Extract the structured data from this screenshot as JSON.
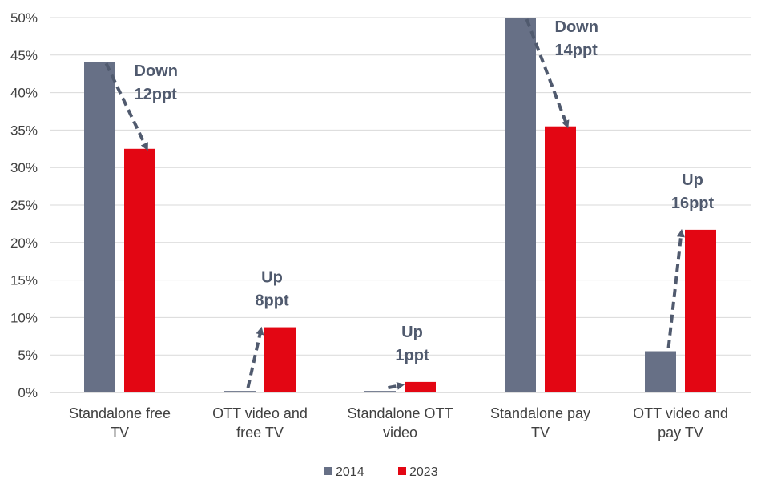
{
  "chart_data": {
    "type": "bar",
    "categories": [
      [
        "Standalone free",
        "TV"
      ],
      [
        "OTT video and",
        "free TV"
      ],
      [
        "Standalone OTT",
        "video"
      ],
      [
        "Standalone pay",
        "TV"
      ],
      [
        "OTT video and",
        "pay TV"
      ]
    ],
    "series": [
      {
        "name": "2014",
        "color": "#677086",
        "values": [
          44.1,
          0.2,
          0.2,
          50.0,
          5.5
        ]
      },
      {
        "name": "2023",
        "color": "#e30613",
        "values": [
          32.5,
          8.7,
          1.4,
          35.5,
          21.7
        ]
      }
    ],
    "ylim": [
      0,
      50
    ],
    "yticks": [
      0,
      5,
      10,
      15,
      20,
      25,
      30,
      35,
      40,
      45,
      50
    ],
    "tick_format": "percent",
    "grid": true,
    "legend": "bottom",
    "annotations": [
      {
        "category": 0,
        "lines": [
          "Down",
          "12ppt"
        ],
        "direction": "down"
      },
      {
        "category": 1,
        "lines": [
          "Up",
          "8ppt"
        ],
        "direction": "up"
      },
      {
        "category": 2,
        "lines": [
          "Up",
          "1ppt"
        ],
        "direction": "up"
      },
      {
        "category": 3,
        "lines": [
          "Down",
          "14ppt"
        ],
        "direction": "down"
      },
      {
        "category": 4,
        "lines": [
          "Up",
          "16ppt"
        ],
        "direction": "up"
      }
    ],
    "arrow_color": "#505a6e"
  }
}
